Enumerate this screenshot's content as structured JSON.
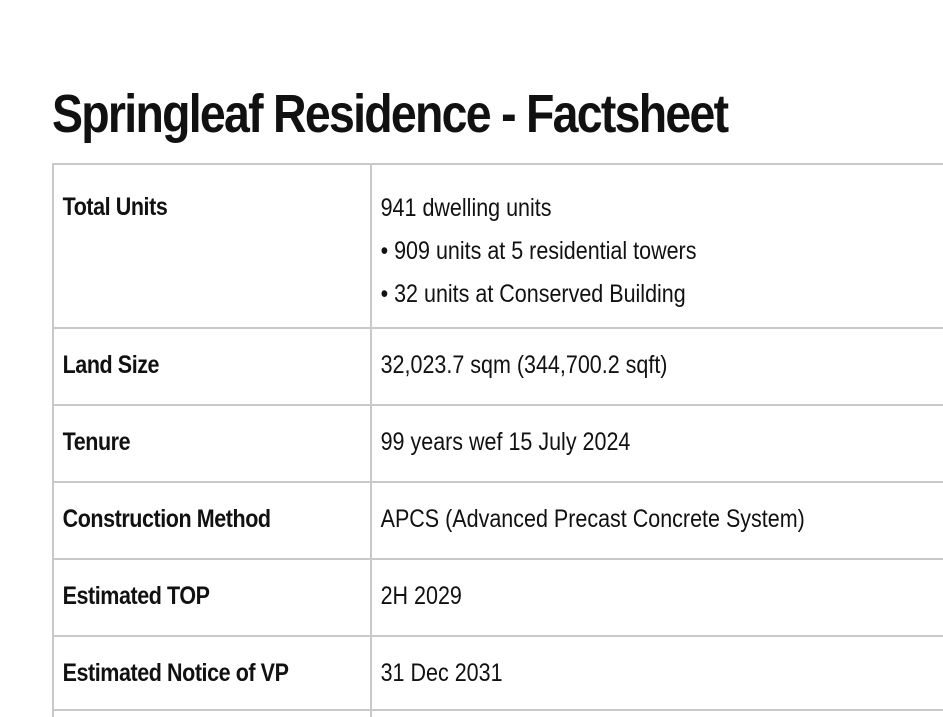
{
  "title": "Springleaf Residence - Factsheet",
  "rows": [
    {
      "label": "Total Units",
      "value": "941 dwelling units",
      "bullets": [
        "• 909 units at 5 residential towers",
        "• 32 units at Conserved Building"
      ]
    },
    {
      "label": "Land Size",
      "value": "32,023.7 sqm (344,700.2 sqft)"
    },
    {
      "label": "Tenure",
      "value": "99 years wef 15 July 2024"
    },
    {
      "label": "Construction Method",
      "value": "APCS (Advanced Precast Concrete System)"
    },
    {
      "label": "Estimated TOP",
      "value": "2H 2029"
    },
    {
      "label": "Estimated Notice of VP",
      "value": "31 Dec 2031"
    }
  ]
}
